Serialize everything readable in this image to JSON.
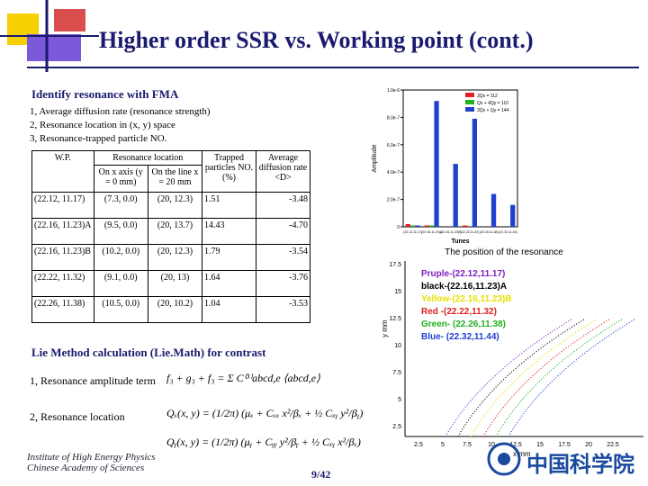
{
  "header": {
    "title": "Higher order SSR vs. Working point (cont.)"
  },
  "intro": {
    "heading": "Identify resonance with FMA",
    "items": [
      "1, Average diffusion rate (resonance strength)",
      "2, Resonance location in (x, y) space",
      "3, Resonance-trapped particle NO."
    ]
  },
  "table": {
    "headers": [
      "W.P.",
      "Resonance location",
      "Trapped particles NO. (%)",
      "Average diffusion rate <D>"
    ],
    "subheaders": [
      "On x axis (y = 0 mm)",
      "On the line x = 20 mm"
    ],
    "rows": [
      [
        "(22.12, 11.17)",
        "(7.3, 0.0)",
        "(20, 12.3)",
        "1.51",
        "-3.48"
      ],
      [
        "(22.16, 11.23)A",
        "(9.5, 0.0)",
        "(20, 13.7)",
        "14.43",
        "-4.70"
      ],
      [
        "(22.16, 11.23)B",
        "(10.2, 0.0)",
        "(20, 12.3)",
        "1.79",
        "-3.54"
      ],
      [
        "(22.22, 11.32)",
        "(9.1, 0.0)",
        "(20, 13)",
        "1.64",
        "-3.76"
      ],
      [
        "(22.26, 11.38)",
        "(10.5, 0.0)",
        "(20, 10.2)",
        "1.04",
        "-3.53"
      ]
    ]
  },
  "chart_data": {
    "type": "bar",
    "x_label": "Tunes",
    "y_label": "Amplitude",
    "categories": [
      "(22.12,11.17)",
      "(22.16,11.23)A",
      "(22.16,11.23)B",
      "(22.22,11.32)",
      "(22.26,11.38)",
      "(22.32,11.44)"
    ],
    "series": [
      {
        "name": "3Qx = 112",
        "color": "#e02020",
        "values": [
          2e-08,
          1e-08,
          0,
          1e-08,
          0,
          0
        ]
      },
      {
        "name": "Qx + 4Qy = 110",
        "color": "#20b020",
        "values": [
          1e-08,
          1e-08,
          0,
          0,
          0,
          0
        ]
      },
      {
        "name": "3Qx + Qy = 144",
        "color": "#2040d0",
        "values": [
          1e-08,
          9.2e-07,
          4.6e-07,
          7.9e-07,
          2.4e-07,
          1.6e-07
        ]
      }
    ],
    "ylim": [
      0,
      1e-06
    ],
    "yticks": [
      0,
      {
        "value": 2e-07,
        "label": "2.0e-7"
      },
      {
        "value": 4e-07,
        "label": "4.0e-7"
      },
      {
        "value": 6e-07,
        "label": "6.0e-7"
      },
      {
        "value": 8e-07,
        "label": "8.0e-7"
      },
      {
        "value": 1e-06,
        "label": "1.0e-6"
      }
    ],
    "legend": "upper-right"
  },
  "resonance_plot": {
    "title": "The position of the resonance",
    "x_label": "x mm",
    "y_label": "y mm",
    "yticks": [
      "17.5",
      "15",
      "12.5",
      "10",
      "7.5",
      "5",
      "2.5"
    ],
    "xticks": [
      "2.5",
      "5",
      "7.5",
      "10",
      "12.5",
      "15",
      "17.5",
      "20",
      "22.5"
    ],
    "legend": [
      {
        "text": "Pruple-(22.12,11.17)",
        "color": "#8020c0"
      },
      {
        "text": "black-(22.16,11.23)A",
        "color": "#000000"
      },
      {
        "text": "Yellow-(22.16,11.23)B",
        "color": "#e8e000"
      },
      {
        "text": "Red -(22.22,11.32)",
        "color": "#e02020"
      },
      {
        "text": "Green- (22.26,11.38)",
        "color": "#20b020"
      },
      {
        "text": "Blue- (22.32,11.44)",
        "color": "#2040d0"
      }
    ]
  },
  "lie": {
    "heading": "Lie Method calculation (Lie.Math) for contrast",
    "items": [
      "1, Resonance amplitude term",
      "2, Resonance location"
    ],
    "formulas": [
      "f₃ + g₃ + f₃ = Σ C⁽³⁾abcd,e ⟨abcd,e⟩",
      "Qₓ(x, y) = (1/2π) (μₓ + Cₓₓ x²/βₓ + ½ Cₓᵧ y²/βᵧ)",
      "Qᵧ(x, y) = (1/2π) (μᵧ + Cᵧᵧ y²/βᵧ + ½ Cₓᵧ x²/βₓ)"
    ]
  },
  "footer": {
    "institute": [
      "Institute of High Energy Physics",
      "Chinese Academy of Sciences"
    ],
    "page": "9/42",
    "logo_text": "中国科学院"
  }
}
